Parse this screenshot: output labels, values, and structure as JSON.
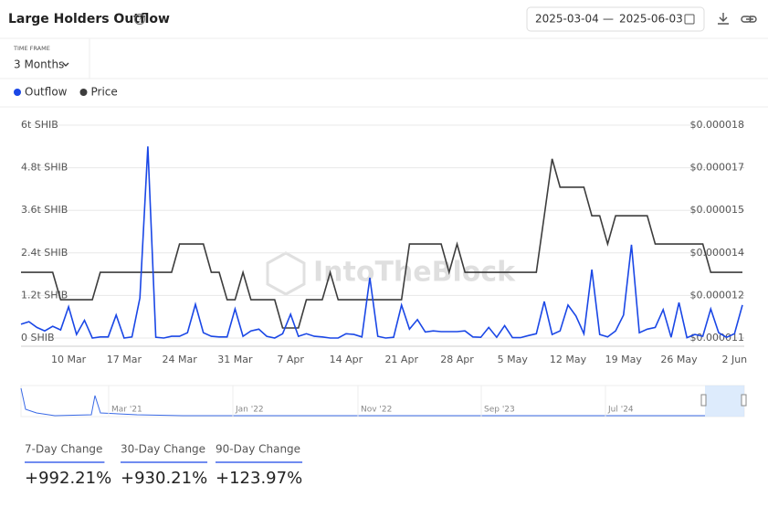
{
  "header": {
    "title": "Large Holders Outflow",
    "date_from": "2025-03-04",
    "date_separator": "—",
    "date_to": "2025-06-03"
  },
  "time_frame": {
    "label": "TIME FRAME",
    "value": "3 Months"
  },
  "watermark": "IntoTheBlock",
  "navigator": {
    "labels": [
      "Mar '21",
      "Jan '22",
      "Nov '22",
      "Sep '23",
      "Jul '24"
    ]
  },
  "stats": [
    {
      "label": "7-Day Change",
      "value": "+992.21%"
    },
    {
      "label": "30-Day Change",
      "value": "+930.21%"
    },
    {
      "label": "90-Day Change",
      "value": "+123.97%"
    }
  ],
  "chart_data": {
    "type": "line",
    "x": [
      null,
      null,
      null,
      null,
      null,
      null,
      "10 Mar",
      null,
      null,
      null,
      null,
      null,
      null,
      "17 Mar",
      null,
      null,
      null,
      null,
      null,
      null,
      "24 Mar",
      null,
      null,
      null,
      null,
      null,
      null,
      "31 Mar",
      null,
      null,
      null,
      null,
      null,
      null,
      "7 Apr",
      null,
      null,
      null,
      null,
      null,
      null,
      "14 Apr",
      null,
      null,
      null,
      null,
      null,
      null,
      "21 Apr",
      null,
      null,
      null,
      null,
      null,
      null,
      "28 Apr",
      null,
      null,
      null,
      null,
      null,
      null,
      "5 May",
      null,
      null,
      null,
      null,
      null,
      null,
      "12 May",
      null,
      null,
      null,
      null,
      null,
      null,
      "19 May",
      null,
      null,
      null,
      null,
      null,
      null,
      "26 May",
      null,
      null,
      null,
      null,
      null,
      null,
      "2 Jun",
      null
    ],
    "series": [
      {
        "name": "Outflow",
        "color": "#1a47e6",
        "values": [
          0.39,
          0.46,
          0.3,
          0.2,
          0.33,
          0.23,
          0.88,
          0.1,
          0.5,
          0,
          0.03,
          0.03,
          0.65,
          0,
          0.03,
          1.13,
          5.4,
          0.02,
          0,
          0.05,
          0.05,
          0.15,
          0.95,
          0.15,
          0.05,
          0.03,
          0.03,
          0.82,
          0.05,
          0.2,
          0.25,
          0.05,
          0,
          0.12,
          0.67,
          0.05,
          0.12,
          0.05,
          0.03,
          0,
          0,
          0.12,
          0.1,
          0.03,
          1.7,
          0.05,
          0,
          0.02,
          0.93,
          0.25,
          0.52,
          0.17,
          0.2,
          0.18,
          0.18,
          0.18,
          0.2,
          0.03,
          0.02,
          0.3,
          0.02,
          0.35,
          0.01,
          0.01,
          0.07,
          0.12,
          1.03,
          0.1,
          0.2,
          0.93,
          0.62,
          0.12,
          1.93,
          0.1,
          0.03,
          0.2,
          0.65,
          2.63,
          0.15,
          0.25,
          0.3,
          0.8,
          0.02,
          1.0,
          0.01,
          0.1,
          0.05,
          0.82,
          0.15,
          0.02,
          0.12,
          0.93
        ]
      },
      {
        "name": "Price",
        "color": "#3d3d3d",
        "axis": "y2",
        "values": [
          1.316e-05,
          1.316e-05,
          1.316e-05,
          1.316e-05,
          1.316e-05,
          1.226e-05,
          1.226e-05,
          1.226e-05,
          1.226e-05,
          1.226e-05,
          1.316e-05,
          1.316e-05,
          1.316e-05,
          1.316e-05,
          1.316e-05,
          1.316e-05,
          1.316e-05,
          1.316e-05,
          1.316e-05,
          1.316e-05,
          1.409e-05,
          1.409e-05,
          1.409e-05,
          1.409e-05,
          1.316e-05,
          1.316e-05,
          1.226e-05,
          1.226e-05,
          1.316e-05,
          1.226e-05,
          1.226e-05,
          1.226e-05,
          1.226e-05,
          1.133e-05,
          1.133e-05,
          1.133e-05,
          1.226e-05,
          1.226e-05,
          1.226e-05,
          1.316e-05,
          1.226e-05,
          1.226e-05,
          1.226e-05,
          1.226e-05,
          1.226e-05,
          1.226e-05,
          1.226e-05,
          1.226e-05,
          1.226e-05,
          1.409e-05,
          1.409e-05,
          1.409e-05,
          1.409e-05,
          1.409e-05,
          1.316e-05,
          1.409e-05,
          1.316e-05,
          1.316e-05,
          1.316e-05,
          1.316e-05,
          1.316e-05,
          1.316e-05,
          1.316e-05,
          1.316e-05,
          1.316e-05,
          1.316e-05,
          1.502e-05,
          1.689e-05,
          1.596e-05,
          1.596e-05,
          1.596e-05,
          1.596e-05,
          1.502e-05,
          1.502e-05,
          1.409e-05,
          1.502e-05,
          1.502e-05,
          1.502e-05,
          1.502e-05,
          1.502e-05,
          1.409e-05,
          1.409e-05,
          1.409e-05,
          1.409e-05,
          1.409e-05,
          1.409e-05,
          1.409e-05,
          1.316e-05,
          1.316e-05,
          1.316e-05,
          1.316e-05,
          1.316e-05
        ]
      }
    ],
    "ylim": [
      0,
      6
    ],
    "yticks": [
      {
        "value": 0,
        "label": "0 SHIB"
      },
      {
        "value": 1.2,
        "label": "1.2t SHIB"
      },
      {
        "value": 2.4,
        "label": "2.4t SHIB"
      },
      {
        "value": 3.6,
        "label": "3.6t SHIB"
      },
      {
        "value": 4.8,
        "label": "4.8t SHIB"
      },
      {
        "value": 6,
        "label": "6t SHIB"
      }
    ],
    "y2lim": [
      1.1e-05,
      1.8e-05
    ],
    "y2ticks": [
      {
        "value": 1.1e-05,
        "label": "$0.000011"
      },
      {
        "value": 1.24e-05,
        "label": "$0.000012"
      },
      {
        "value": 1.38e-05,
        "label": "$0.000014"
      },
      {
        "value": 1.52e-05,
        "label": "$0.000015"
      },
      {
        "value": 1.66e-05,
        "label": "$0.000017"
      },
      {
        "value": 1.8e-05,
        "label": "$0.000018"
      }
    ],
    "grid": true
  }
}
